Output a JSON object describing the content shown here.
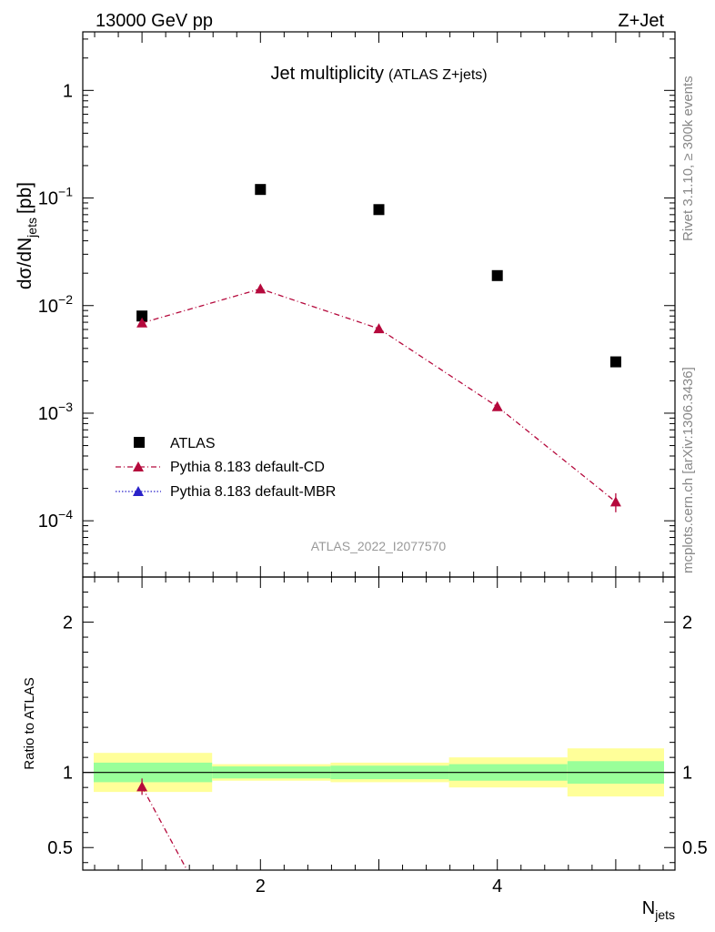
{
  "header": {
    "left_label": "13000 GeV pp",
    "right_label": "Z+Jet"
  },
  "side_labels": {
    "rivet": "Rivet 3.1.10, ≥ 300k events",
    "mcplots": "mcplots.cern.ch [arXiv:1306.3436]"
  },
  "chart_data": [
    {
      "type": "scatter",
      "title": "Jet multiplicity",
      "subtitle": "(ATLAS Z+jets)",
      "ylabel_main": "dσ/dN",
      "ylabel_sub": "jets",
      "ylabel_unit": "[pb]",
      "xlabel_main": "N",
      "xlabel_sub": "jets",
      "watermark": "ATLAS_2022_I2077570",
      "yscale": "log",
      "ylim": [
        3e-05,
        3.5
      ],
      "xlim": [
        0.5,
        5.5
      ],
      "y_ticks": [
        {
          "value": 1,
          "label": "1"
        },
        {
          "value": 0.1,
          "label": "10",
          "exp": "−1"
        },
        {
          "value": 0.01,
          "label": "10",
          "exp": "−2"
        },
        {
          "value": 0.001,
          "label": "10",
          "exp": "−3"
        },
        {
          "value": 0.0001,
          "label": "10",
          "exp": "−4"
        }
      ],
      "legend_position": "bottom-left",
      "series": [
        {
          "name": "ATLAS",
          "marker": "square",
          "color": "#000000",
          "x": [
            1,
            2,
            3,
            4,
            5
          ],
          "y": [
            0.008,
            0.12,
            0.078,
            0.019,
            0.003
          ]
        },
        {
          "name": "Pythia 8.183 default-CD",
          "marker": "triangle",
          "color": "#b5093c",
          "line": "dash-dot",
          "x": [
            1,
            2,
            3,
            4,
            5
          ],
          "y": [
            0.0069,
            0.0143,
            0.0061,
            0.00115,
            0.00015
          ],
          "yerr": [
            0,
            0,
            0,
            5e-05,
            3e-05
          ]
        },
        {
          "name": "Pythia 8.183 default-MBR",
          "marker": "triangle",
          "color": "#2a22c9",
          "line": "dotted",
          "x": [],
          "y": []
        }
      ]
    },
    {
      "type": "scatter",
      "ylabel": "Ratio to ATLAS",
      "ylim": [
        0.35,
        2.3
      ],
      "xlim": [
        0.5,
        5.5
      ],
      "y_ticks": [
        {
          "value": 0.5,
          "label": "0.5"
        },
        {
          "value": 1,
          "label": "1"
        },
        {
          "value": 2,
          "label": "2"
        }
      ],
      "x_ticks": [
        {
          "value": 2,
          "label": "2"
        },
        {
          "value": 4,
          "label": "4"
        }
      ],
      "bands": {
        "inner_color": "#99ff99",
        "outer_color": "#ffff99",
        "bins": [
          {
            "xlow": 0.5,
            "xhigh": 1.5,
            "inner": [
              0.935,
              1.065
            ],
            "outer": [
              0.87,
              1.13
            ]
          },
          {
            "xlow": 1.5,
            "xhigh": 2.5,
            "inner": [
              0.96,
              1.04
            ],
            "outer": [
              0.945,
              1.055
            ]
          },
          {
            "xlow": 2.5,
            "xhigh": 3.5,
            "inner": [
              0.955,
              1.045
            ],
            "outer": [
              0.935,
              1.065
            ]
          },
          {
            "xlow": 3.5,
            "xhigh": 4.5,
            "inner": [
              0.945,
              1.055
            ],
            "outer": [
              0.9,
              1.1
            ]
          },
          {
            "xlow": 4.5,
            "xhigh": 5.5,
            "inner": [
              0.925,
              1.075
            ],
            "outer": [
              0.84,
              1.16
            ]
          }
        ]
      },
      "series": [
        {
          "name": "Pythia 8.183 default-CD",
          "color": "#b5093c",
          "x": [
            1,
            1.38
          ],
          "y": [
            0.905,
            0.35
          ]
        }
      ]
    }
  ]
}
